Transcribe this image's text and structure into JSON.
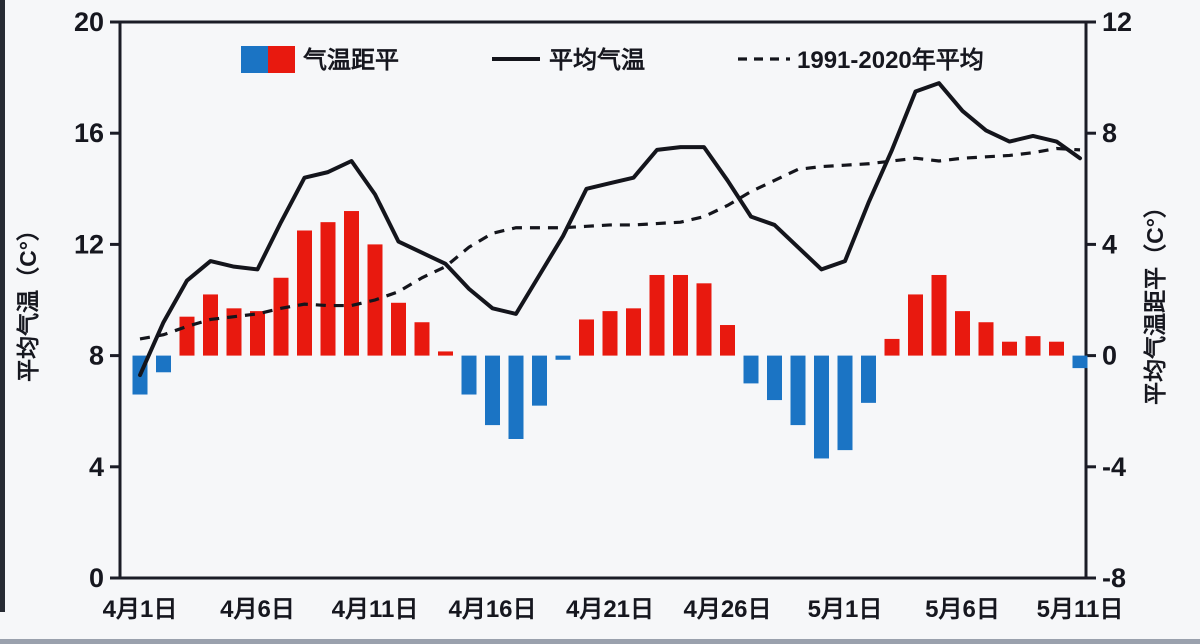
{
  "chart_data": {
    "type": "combo-bar-line",
    "n_days": 41,
    "x_tick_labels": [
      "4月1日",
      "4月6日",
      "4月11日",
      "4月16日",
      "4月21日",
      "4月26日",
      "5月1日",
      "5月6日",
      "5月11日"
    ],
    "legend": {
      "bar": "气温距平",
      "solid": "平均气温",
      "dashed": "1991-2020年平均"
    },
    "left_axis": {
      "label": "平均气温（C°）",
      "min": 0,
      "max": 20,
      "ticks": [
        0,
        4,
        8,
        12,
        16,
        20
      ]
    },
    "right_axis": {
      "label": "平均气温距平（C°）",
      "min": -8,
      "max": 12,
      "ticks": [
        -8,
        -4,
        0,
        4,
        8,
        12
      ]
    },
    "series": [
      {
        "name": "气温距平",
        "type": "bar",
        "axis": "right",
        "values": [
          -1.4,
          -0.6,
          1.4,
          2.2,
          1.7,
          1.6,
          2.8,
          4.5,
          4.8,
          5.2,
          4.0,
          1.9,
          1.2,
          0.15,
          -1.4,
          -2.5,
          -3.0,
          -1.8,
          -0.15,
          1.3,
          1.6,
          1.7,
          2.9,
          2.9,
          2.6,
          1.1,
          -1.0,
          -1.6,
          -2.5,
          -3.7,
          -3.4,
          -1.7,
          0.6,
          2.2,
          2.9,
          1.6,
          1.2,
          0.5,
          0.7,
          0.5,
          -0.45
        ]
      },
      {
        "name": "平均气温",
        "type": "line",
        "style": "solid",
        "axis": "left",
        "values": [
          7.3,
          9.2,
          10.7,
          11.4,
          11.2,
          11.1,
          12.8,
          14.4,
          14.6,
          15.0,
          13.8,
          12.1,
          11.7,
          11.3,
          10.4,
          9.7,
          9.5,
          10.9,
          12.3,
          14.0,
          14.2,
          14.4,
          15.4,
          15.5,
          15.5,
          14.3,
          13.0,
          12.7,
          11.9,
          11.1,
          11.4,
          13.5,
          15.4,
          17.5,
          17.8,
          16.8,
          16.1,
          15.7,
          15.9,
          15.7,
          15.1
        ]
      },
      {
        "name": "1991-2020年平均",
        "type": "line",
        "style": "dashed",
        "axis": "left",
        "values": [
          8.6,
          8.75,
          9.05,
          9.3,
          9.4,
          9.5,
          9.7,
          9.85,
          9.8,
          9.8,
          10.0,
          10.3,
          10.8,
          11.2,
          11.9,
          12.4,
          12.6,
          12.6,
          12.6,
          12.65,
          12.7,
          12.7,
          12.75,
          12.8,
          13.0,
          13.4,
          13.9,
          14.3,
          14.7,
          14.8,
          14.85,
          14.9,
          15.0,
          15.1,
          15.0,
          15.1,
          15.15,
          15.2,
          15.3,
          15.45,
          15.4
        ]
      }
    ],
    "colors": {
      "bar_positive": "#e8190f",
      "bar_negative": "#1b74c4",
      "line": "#14151c",
      "axis": "#1b1c26",
      "text": "#16171f"
    },
    "layout": {
      "legend_position": "top-inside",
      "grid": "off",
      "frame": "full-box"
    }
  }
}
